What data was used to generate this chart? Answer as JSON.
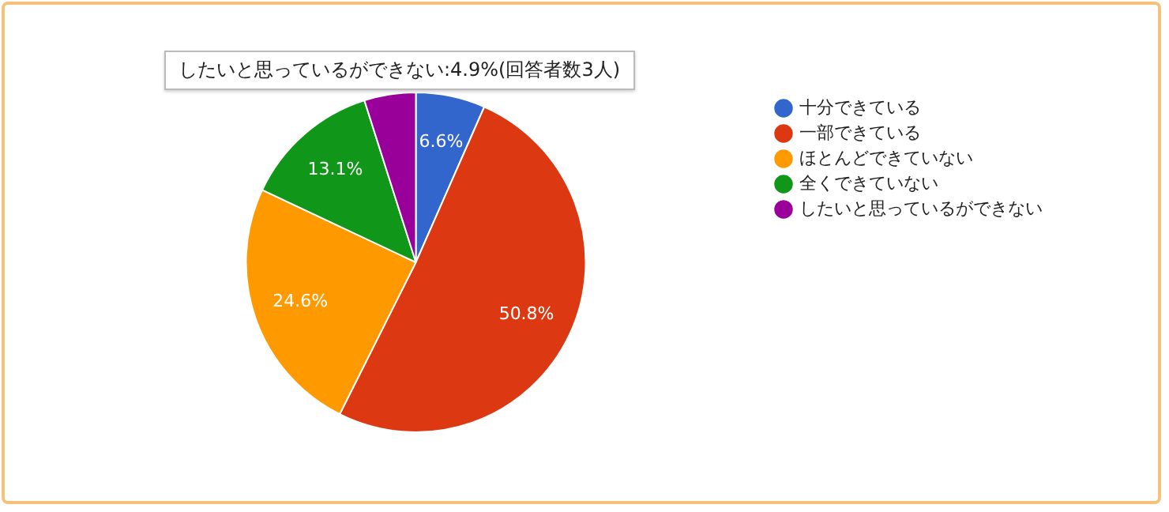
{
  "chart_data": {
    "type": "pie",
    "categories": [
      "十分できている",
      "一部できている",
      "ほとんどできていない",
      "全くできていない",
      "したいと思っているができない"
    ],
    "values": [
      6.6,
      50.8,
      24.6,
      13.1,
      4.9
    ],
    "colors": [
      "#3366cc",
      "#dc3912",
      "#ff9900",
      "#109618",
      "#990099"
    ],
    "value_labels": [
      "6.6%",
      "50.8%",
      "24.6%",
      "13.1%",
      null
    ],
    "annotations": [
      "したいと思っているができない:4.9%(回答者数3人)"
    ],
    "legend": "right"
  }
}
